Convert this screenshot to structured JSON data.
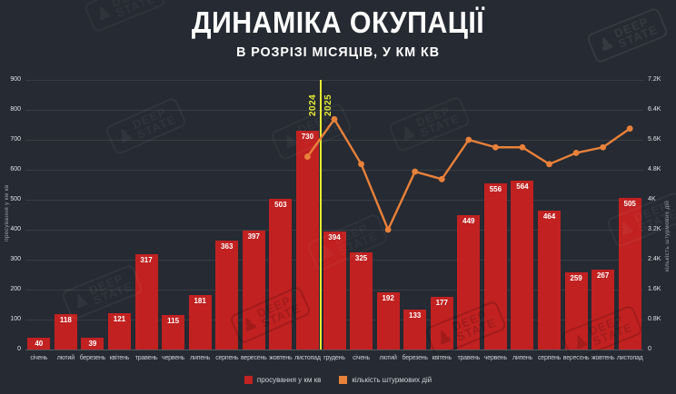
{
  "header": {
    "title": "ДИНАМІКА ОКУПАЦІЇ",
    "subtitle": "В РОЗРІЗІ МІСЯЦІВ, У КМ КВ"
  },
  "watermark": {
    "line1": "DEEP",
    "line2": "STATE"
  },
  "colors": {
    "background": "#262a32",
    "bar": "#c12121",
    "line": "#e8813a",
    "divider": "#e5eb34",
    "title_text": "#ffffff",
    "muted_text": "#c9ced6"
  },
  "chart_data": {
    "type": "bar",
    "title": "ДИНАМІКА ОКУПАЦІЇ",
    "subtitle": "В РОЗРІЗІ МІСЯЦІВ, У КМ КВ",
    "categories": [
      "січень",
      "лютий",
      "березень",
      "квітень",
      "травень",
      "червень",
      "липень",
      "серпень",
      "вересень",
      "жовтень",
      "листопад",
      "грудень",
      "січень",
      "лютий",
      "березень",
      "квітень",
      "травень",
      "червень",
      "липень",
      "серпень",
      "вересень",
      "жовтень",
      "листопад"
    ],
    "series": [
      {
        "name": "просування у км кв",
        "type": "bar",
        "color": "#c12121",
        "axis": "left",
        "values": [
          40,
          118,
          39,
          121,
          317,
          115,
          181,
          363,
          397,
          503,
          730,
          394,
          325,
          192,
          133,
          177,
          449,
          556,
          564,
          464,
          259,
          267,
          505
        ]
      },
      {
        "name": "кількість штурмових дій",
        "type": "line",
        "color": "#e8813a",
        "axis": "right",
        "start_index": 10,
        "values": [
          5150,
          6150,
          4950,
          3200,
          4750,
          4550,
          5600,
          5400,
          5400,
          4950,
          5250,
          5400,
          5900
        ]
      }
    ],
    "left_axis": {
      "label": "просування у км кв",
      "min": 0,
      "max": 900,
      "step": 100,
      "ticks": [
        "0",
        "100",
        "200",
        "300",
        "400",
        "500",
        "600",
        "700",
        "800",
        "900"
      ]
    },
    "right_axis": {
      "label": "кількість штурмових дій",
      "min": 0,
      "max": 7200,
      "step": 800,
      "ticks": [
        "0",
        "0.8K",
        "1.6K",
        "2.4K",
        "3.2K",
        "4K",
        "4.8K",
        "5.6K",
        "6.4K",
        "7.2K"
      ]
    },
    "divider": {
      "after_category_index": 10,
      "left_label": "2024",
      "right_label": "2025"
    },
    "grid": true,
    "legend_position": "bottom"
  },
  "legend": [
    {
      "label": "просування у км кв",
      "color": "#c12121"
    },
    {
      "label": "кількість штурмових дій",
      "color": "#e8813a"
    }
  ]
}
